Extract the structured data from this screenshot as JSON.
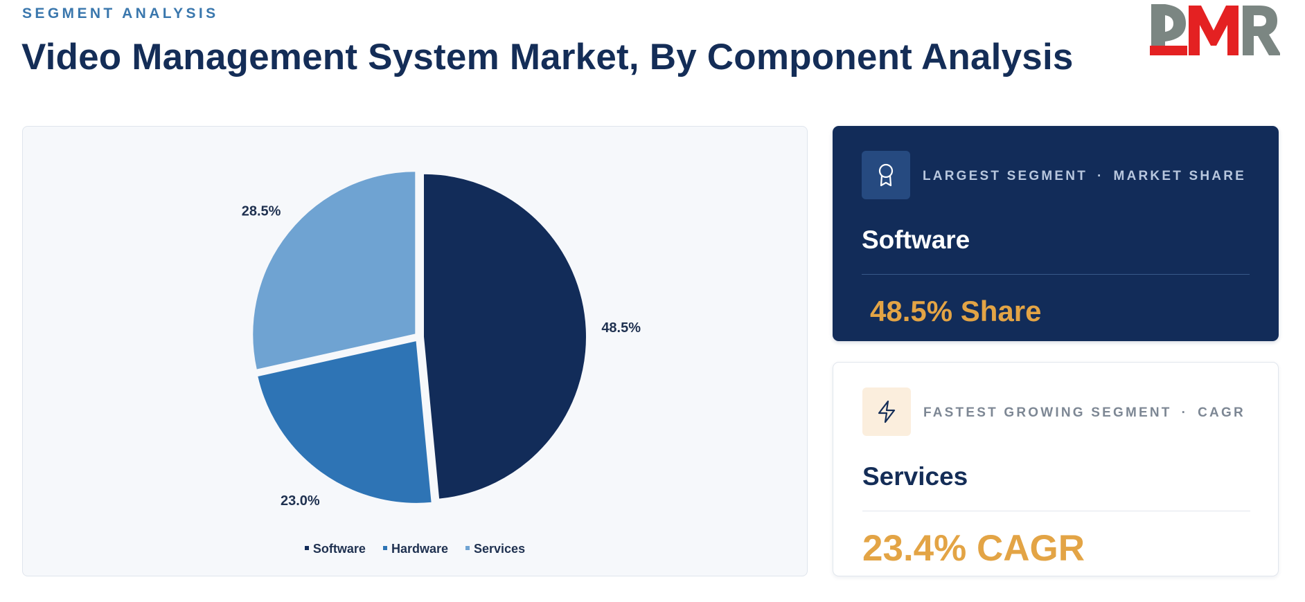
{
  "header": {
    "eyebrow": "SEGMENT ANALYSIS",
    "title": "Video Management System Market, By Component Analysis",
    "logo_text": "DMR"
  },
  "chart_data": {
    "type": "pie",
    "title": "",
    "categories": [
      "Software",
      "Hardware",
      "Services"
    ],
    "values": [
      48.5,
      23.0,
      28.5
    ],
    "value_labels": [
      "48.5%",
      "23.0%",
      "28.5%"
    ],
    "colors": [
      "#122c59",
      "#2e74b5",
      "#6fa3d2"
    ],
    "legend_position": "bottom",
    "exploded": true
  },
  "cards": {
    "largest": {
      "icon": "award-icon",
      "label": "LARGEST SEGMENT",
      "separator": "·",
      "metric": "MARKET SHARE",
      "value": "Software",
      "stat": "48.5% Share"
    },
    "fastest": {
      "icon": "lightning-icon",
      "label": "FASTEST GROWING SEGMENT",
      "separator": "·",
      "metric": "CAGR",
      "value": "Services",
      "stat": "23.4% CAGR"
    }
  },
  "colors": {
    "navy": "#122c59",
    "accent": "#e3a445",
    "logo_gray": "#7b8682",
    "logo_red": "#e42122"
  }
}
